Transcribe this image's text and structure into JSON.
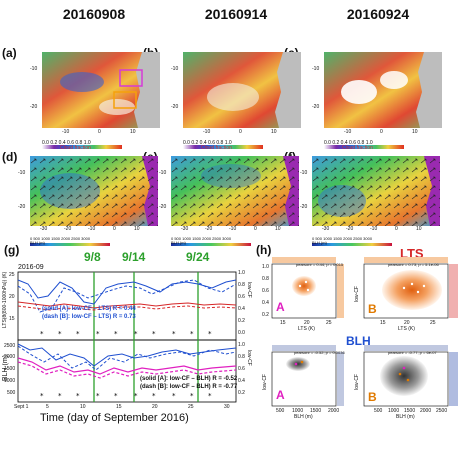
{
  "header": {
    "dates": [
      "20160908",
      "20160914",
      "20160924"
    ]
  },
  "panels": {
    "labels": [
      "(a)",
      "(b)",
      "(c)",
      "(d)",
      "(e)",
      "(f)",
      "(g)",
      "(h)"
    ]
  },
  "maps_top": {
    "ytick_labels": [
      "-10",
      "-20"
    ],
    "xtick_labels": [
      "-10",
      "0",
      "10"
    ],
    "colorbar_ticks": "0.0 0.2 0.4 0.6 0.8 1.0",
    "colorbar_label": "Cloud fraction",
    "annotation": "A"
  },
  "maps_bottom": {
    "ytick_labels": [
      "-10",
      "-20"
    ],
    "xtick_labels": [
      "-30",
      "-20",
      "-10",
      "0",
      "10"
    ],
    "colorbar_ticks": "0  500 1000 1500 2000 2500 3000",
    "colorbar_label": "BLH (m)"
  },
  "panel_g": {
    "date_label": "2016-09",
    "ylabel_top": "LTS(θ(800-1000hPa)) (K)",
    "ylabel_bottom": "BLH (m)",
    "ylabel_right_top": "low-CF",
    "ylabel_right_bottom": "low-CF",
    "xlabel": "Time (day of September 2016)",
    "xtick_labels": [
      "Sept 1",
      "5",
      "10",
      "15",
      "20",
      "25",
      "30"
    ],
    "yticks_top": [
      "25",
      "20",
      "15"
    ],
    "yticks_bottom": [
      "2500",
      "2000",
      "1500",
      "1000",
      "500"
    ],
    "yticks_right": [
      "1.0",
      "0.8",
      "0.6",
      "0.4",
      "0.2",
      "0.0"
    ],
    "event_labels": [
      "9/8",
      "9/14",
      "9/24"
    ],
    "legend_top": [
      "(solid [A]: low-CF – LTS) R = 0.44",
      "(dash [B]: low-CF – LTS) R = 0.73"
    ],
    "legend_bottom": [
      "(solid [A]: low-CF – BLH) R = -0.52",
      "(dash [B]: low-CF – BLH) R = -0.77"
    ],
    "colors": {
      "blue": "#1f4fd0",
      "red": "#d62728",
      "magenta": "#e020c0",
      "event_line": "#2ca02c"
    }
  },
  "panel_h": {
    "title_lts": "LTS",
    "title_blh": "BLH",
    "stats": [
      "pearsonr = 0.44; p = 0.015",
      "pearsonr = 0.73; p = 5.1e-06",
      "pearsonr = -0.52; p = 0.0036",
      "pearsonr = -0.77; p = 6e-07"
    ],
    "region_labels": [
      "A",
      "B",
      "A",
      "B"
    ],
    "xlabel_lts": "LTS (K)",
    "xlabel_blh": "BLH (m)",
    "ylabel": "low-CF",
    "xticks_lts": [
      "15",
      "20",
      "25"
    ],
    "xticks_blh": [
      "500",
      "1000",
      "1500",
      "2000"
    ],
    "xticks_blh_b": [
      "500",
      "1000",
      "1500",
      "2000",
      "2500"
    ],
    "yticks": [
      "1.0",
      "0.8",
      "0.6",
      "0.4",
      "0.2"
    ],
    "colors": {
      "lts_title": "#d62728",
      "blh_title": "#1f4fd0",
      "A": "#e020c0",
      "B": "#e07a00"
    }
  }
}
